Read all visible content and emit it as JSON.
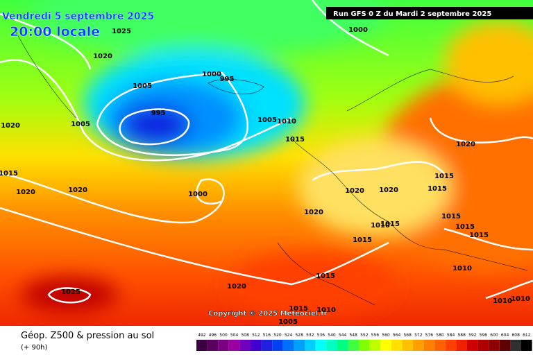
{
  "header": {
    "date": "Vendredi 5 septembre 2025",
    "time": "20:00 locale",
    "run": "Run GFS 0 Z du Mardi 2 septembre 2025"
  },
  "copyright": "Copyright © 2025 Meteociel.fr",
  "footer": {
    "title": "Géop. Z500 & pression au sol",
    "lead": "(+ 90h)"
  },
  "isobar_labels": [
    1025,
    1000,
    1020,
    1000,
    995,
    1005,
    995,
    1005,
    1005,
    1010,
    1020,
    1015,
    1020,
    1015,
    1015,
    1020,
    1020,
    1000,
    1020,
    1020,
    1015,
    1020,
    1015,
    1010,
    1015,
    1015,
    1015,
    1015,
    1010,
    1015,
    1020,
    1025,
    1010,
    1010,
    1015,
    1010,
    1005
  ],
  "scale": {
    "labels": [
      492,
      496,
      500,
      504,
      508,
      512,
      516,
      520,
      524,
      528,
      532,
      536,
      540,
      544,
      548,
      552,
      556,
      560,
      564,
      568,
      572,
      576,
      580,
      584,
      588,
      592,
      596,
      600,
      604,
      608,
      612
    ],
    "colors": [
      "#3c0040",
      "#5a005f",
      "#7a007f",
      "#9a009f",
      "#6f00c0",
      "#4000d0",
      "#2020e0",
      "#0040f0",
      "#0070ff",
      "#00a0ff",
      "#00d0ff",
      "#00ffff",
      "#00ffc0",
      "#00ff80",
      "#40ff40",
      "#80ff00",
      "#c0ff00",
      "#ffff00",
      "#ffe000",
      "#ffc000",
      "#ffa000",
      "#ff8000",
      "#ff6000",
      "#ff4000",
      "#f02000",
      "#d00000",
      "#b00000",
      "#900000",
      "#600000",
      "#303030",
      "#000000"
    ]
  }
}
